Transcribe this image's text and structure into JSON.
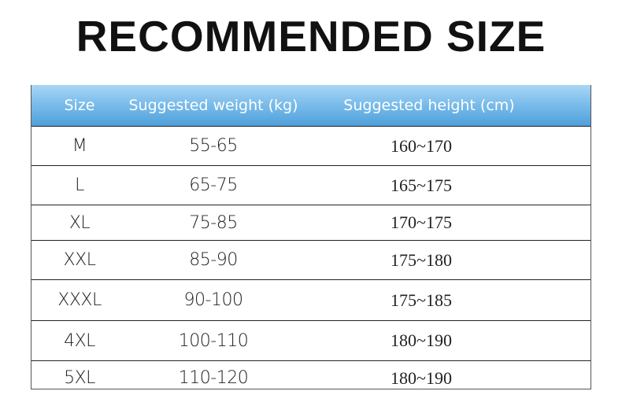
{
  "title": "RECOMMENDED SIZE",
  "header": {
    "size": "Size",
    "weight": "Suggested weight (kg)",
    "height": "Suggested height (cm)"
  },
  "header_color": "#6cb4e6",
  "rows": [
    {
      "size": "M",
      "weight": "55-65",
      "height": "160~170"
    },
    {
      "size": "L",
      "weight": "65-75",
      "height": "165~175"
    },
    {
      "size": "XL",
      "weight": "75-85",
      "height": "170~175"
    },
    {
      "size": "XXL",
      "weight": "85-90",
      "height": "175~180"
    },
    {
      "size": "XXXL",
      "weight": "90-100",
      "height": "175~185"
    },
    {
      "size": "4XL",
      "weight": "100-110",
      "height": "180~190"
    },
    {
      "size": "5XL",
      "weight": "110-120",
      "height": "180~190"
    }
  ]
}
